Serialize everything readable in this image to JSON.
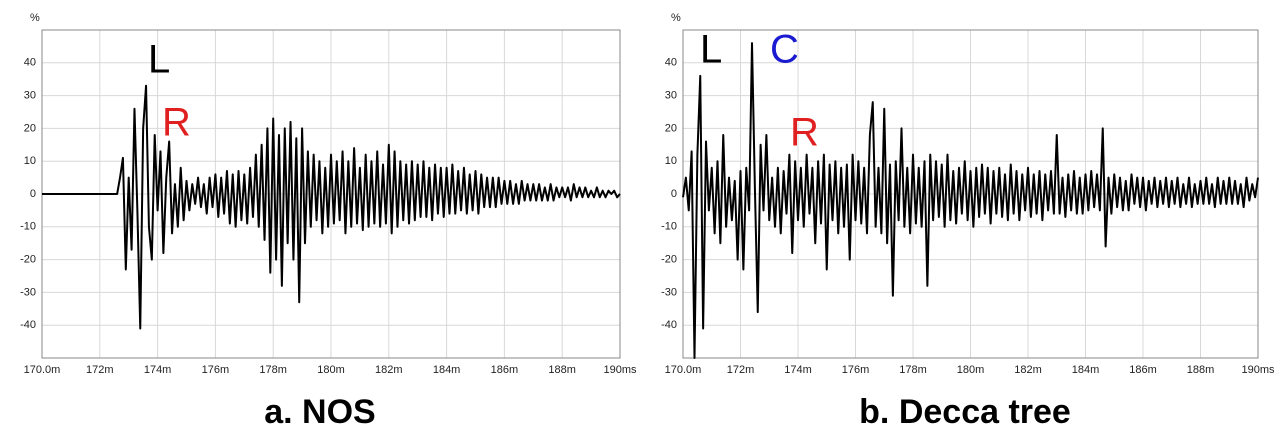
{
  "chart_data": [
    {
      "type": "line",
      "ylabel": "%",
      "subtitle": "a. NOS",
      "color": "#000000",
      "grid": true,
      "xlim": [
        170,
        190
      ],
      "ylim": [
        -50,
        50
      ],
      "xticks": [
        {
          "value": 170,
          "label": "170.0m"
        },
        {
          "value": 172,
          "label": "172m"
        },
        {
          "value": 174,
          "label": "174m"
        },
        {
          "value": 176,
          "label": "176m"
        },
        {
          "value": 178,
          "label": "178m"
        },
        {
          "value": 180,
          "label": "180m"
        },
        {
          "value": 182,
          "label": "182m"
        },
        {
          "value": 184,
          "label": "184m"
        },
        {
          "value": 186,
          "label": "186m"
        },
        {
          "value": 188,
          "label": "188m"
        },
        {
          "value": 190,
          "label": "190ms"
        }
      ],
      "yticks": [
        -40,
        -30,
        -20,
        -10,
        0,
        10,
        20,
        30,
        40
      ],
      "annotations": [
        {
          "text": "L",
          "color": "#000000"
        },
        {
          "text": "R",
          "color": "#e02020"
        }
      ],
      "x": [
        170.0,
        172.6,
        172.7,
        172.8,
        172.9,
        173.0,
        173.1,
        173.2,
        173.3,
        173.4,
        173.5,
        173.6,
        173.7,
        173.8,
        173.9,
        174.0,
        174.1,
        174.2,
        174.3,
        174.4,
        174.5,
        174.6,
        174.7,
        174.8,
        174.9,
        175.0,
        175.1,
        175.2,
        175.3,
        175.4,
        175.5,
        175.6,
        175.7,
        175.8,
        175.9,
        176.0,
        176.1,
        176.2,
        176.3,
        176.4,
        176.5,
        176.6,
        176.7,
        176.8,
        176.9,
        177.0,
        177.1,
        177.2,
        177.3,
        177.4,
        177.5,
        177.6,
        177.7,
        177.8,
        177.9,
        178.0,
        178.1,
        178.2,
        178.3,
        178.4,
        178.5,
        178.6,
        178.7,
        178.8,
        178.9,
        179.0,
        179.1,
        179.2,
        179.3,
        179.4,
        179.5,
        179.6,
        179.7,
        179.8,
        179.9,
        180.0,
        180.1,
        180.2,
        180.3,
        180.4,
        180.5,
        180.6,
        180.7,
        180.8,
        180.9,
        181.0,
        181.1,
        181.2,
        181.3,
        181.4,
        181.5,
        181.6,
        181.7,
        181.8,
        181.9,
        182.0,
        182.1,
        182.2,
        182.3,
        182.4,
        182.5,
        182.6,
        182.7,
        182.8,
        182.9,
        183.0,
        183.1,
        183.2,
        183.3,
        183.4,
        183.5,
        183.6,
        183.7,
        183.8,
        183.9,
        184.0,
        184.1,
        184.2,
        184.3,
        184.4,
        184.5,
        184.6,
        184.7,
        184.8,
        184.9,
        185.0,
        185.1,
        185.2,
        185.3,
        185.4,
        185.5,
        185.6,
        185.7,
        185.8,
        185.9,
        186.0,
        186.1,
        186.2,
        186.3,
        186.4,
        186.5,
        186.6,
        186.7,
        186.8,
        186.9,
        187.0,
        187.1,
        187.2,
        187.3,
        187.4,
        187.5,
        187.6,
        187.7,
        187.8,
        187.9,
        188.0,
        188.1,
        188.2,
        188.3,
        188.4,
        188.5,
        188.6,
        188.7,
        188.8,
        188.9,
        189.0,
        189.1,
        189.2,
        189.3,
        189.4,
        189.5,
        189.6,
        189.7,
        189.8,
        189.9,
        190.0
      ],
      "values": [
        0,
        0,
        5,
        11,
        -23,
        5,
        -17,
        26,
        -5,
        -41,
        20,
        33,
        -10,
        -20,
        18,
        -5,
        13,
        -18,
        5,
        16,
        -12,
        3,
        -10,
        8,
        -8,
        4,
        -5,
        3,
        -3,
        5,
        -4,
        3,
        -6,
        5,
        -4,
        6,
        -7,
        5,
        -6,
        7,
        -9,
        6,
        -10,
        7,
        -8,
        6,
        -9,
        8,
        -7,
        12,
        -10,
        15,
        -14,
        20,
        -24,
        23,
        -20,
        18,
        -28,
        20,
        -15,
        22,
        -20,
        17,
        -33,
        20,
        -15,
        13,
        -10,
        12,
        -8,
        10,
        -12,
        8,
        -10,
        12,
        -9,
        10,
        -8,
        13,
        -12,
        10,
        -10,
        14,
        -9,
        8,
        -11,
        12,
        -10,
        10,
        -9,
        13,
        -10,
        9,
        -9,
        15,
        -12,
        13,
        -10,
        10,
        -8,
        9,
        -9,
        10,
        -8,
        9,
        -7,
        10,
        -7,
        8,
        -8,
        9,
        -6,
        8,
        -7,
        8,
        -6,
        9,
        -6,
        7,
        -5,
        8,
        -6,
        6,
        -5,
        7,
        -6,
        6,
        -4,
        5,
        -4,
        5,
        -4,
        5,
        -3,
        4,
        -3,
        4,
        -3,
        3,
        -3,
        4,
        -2,
        3,
        -2,
        3,
        -2,
        3,
        -2,
        2,
        -2,
        3,
        -2,
        2,
        -1,
        2,
        -1,
        2,
        -2,
        3,
        -1,
        2,
        -1,
        2,
        -1,
        1,
        -1,
        2,
        -1,
        1,
        -1,
        1,
        0,
        1,
        -1,
        0
      ]
    },
    {
      "type": "line",
      "ylabel": "%",
      "subtitle": "b. Decca tree",
      "color": "#000000",
      "grid": true,
      "xlim": [
        170,
        190
      ],
      "ylim": [
        -50,
        50
      ],
      "xticks": [
        {
          "value": 170,
          "label": "170.0m"
        },
        {
          "value": 172,
          "label": "172m"
        },
        {
          "value": 174,
          "label": "174m"
        },
        {
          "value": 176,
          "label": "176m"
        },
        {
          "value": 178,
          "label": "178m"
        },
        {
          "value": 180,
          "label": "180m"
        },
        {
          "value": 182,
          "label": "182m"
        },
        {
          "value": 184,
          "label": "184m"
        },
        {
          "value": 186,
          "label": "186m"
        },
        {
          "value": 188,
          "label": "188m"
        },
        {
          "value": 190,
          "label": "190ms"
        }
      ],
      "yticks": [
        -40,
        -30,
        -20,
        -10,
        0,
        10,
        20,
        30,
        40
      ],
      "annotations": [
        {
          "text": "L",
          "color": "#000000"
        },
        {
          "text": "C",
          "color": "#1a1ad0"
        },
        {
          "text": "R",
          "color": "#e02020"
        }
      ],
      "x": [
        170.0,
        170.1,
        170.2,
        170.3,
        170.4,
        170.5,
        170.6,
        170.7,
        170.8,
        170.9,
        171.0,
        171.1,
        171.2,
        171.3,
        171.4,
        171.5,
        171.6,
        171.7,
        171.8,
        171.9,
        172.0,
        172.1,
        172.2,
        172.3,
        172.4,
        172.5,
        172.6,
        172.7,
        172.8,
        172.9,
        173.0,
        173.1,
        173.2,
        173.3,
        173.4,
        173.5,
        173.6,
        173.7,
        173.8,
        173.9,
        174.0,
        174.1,
        174.2,
        174.3,
        174.4,
        174.5,
        174.6,
        174.7,
        174.8,
        174.9,
        175.0,
        175.1,
        175.2,
        175.3,
        175.4,
        175.5,
        175.6,
        175.7,
        175.8,
        175.9,
        176.0,
        176.1,
        176.2,
        176.3,
        176.4,
        176.5,
        176.6,
        176.7,
        176.8,
        176.9,
        177.0,
        177.1,
        177.2,
        177.3,
        177.4,
        177.5,
        177.6,
        177.7,
        177.8,
        177.9,
        178.0,
        178.1,
        178.2,
        178.3,
        178.4,
        178.5,
        178.6,
        178.7,
        178.8,
        178.9,
        179.0,
        179.1,
        179.2,
        179.3,
        179.4,
        179.5,
        179.6,
        179.7,
        179.8,
        179.9,
        180.0,
        180.1,
        180.2,
        180.3,
        180.4,
        180.5,
        180.6,
        180.7,
        180.8,
        180.9,
        181.0,
        181.1,
        181.2,
        181.3,
        181.4,
        181.5,
        181.6,
        181.7,
        181.8,
        181.9,
        182.0,
        182.1,
        182.2,
        182.3,
        182.4,
        182.5,
        182.6,
        182.7,
        182.8,
        182.9,
        183.0,
        183.1,
        183.2,
        183.3,
        183.4,
        183.5,
        183.6,
        183.7,
        183.8,
        183.9,
        184.0,
        184.1,
        184.2,
        184.3,
        184.4,
        184.5,
        184.6,
        184.7,
        184.8,
        184.9,
        185.0,
        185.1,
        185.2,
        185.3,
        185.4,
        185.5,
        185.6,
        185.7,
        185.8,
        185.9,
        186.0,
        186.1,
        186.2,
        186.3,
        186.4,
        186.5,
        186.6,
        186.7,
        186.8,
        186.9,
        187.0,
        187.1,
        187.2,
        187.3,
        187.4,
        187.5,
        187.6,
        187.7,
        187.8,
        187.9,
        188.0,
        188.1,
        188.2,
        188.3,
        188.4,
        188.5,
        188.6,
        188.7,
        188.8,
        188.9,
        189.0,
        189.1,
        189.2,
        189.3,
        189.4,
        189.5,
        189.6,
        189.7,
        189.8,
        189.9,
        190.0
      ],
      "values": [
        -1,
        5,
        -5,
        13,
        -50,
        12,
        36,
        -41,
        16,
        -5,
        8,
        -12,
        10,
        -15,
        18,
        -10,
        5,
        -8,
        4,
        -20,
        7,
        -23,
        8,
        -5,
        46,
        2,
        -36,
        15,
        -5,
        18,
        -8,
        5,
        -10,
        8,
        -12,
        7,
        -6,
        12,
        -18,
        10,
        -8,
        8,
        -10,
        12,
        -6,
        8,
        -15,
        10,
        -9,
        12,
        -23,
        9,
        -8,
        10,
        -12,
        8,
        -10,
        9,
        -20,
        12,
        -8,
        10,
        -9,
        8,
        -12,
        18,
        28,
        -10,
        8,
        -12,
        26,
        -15,
        9,
        -31,
        10,
        -8,
        20,
        -10,
        8,
        -12,
        12,
        -9,
        8,
        -10,
        10,
        -28,
        12,
        -8,
        10,
        -7,
        9,
        -10,
        12,
        -8,
        7,
        -9,
        8,
        -6,
        10,
        -8,
        7,
        -10,
        8,
        -7,
        9,
        -6,
        8,
        -9,
        7,
        -6,
        8,
        -7,
        6,
        -8,
        9,
        -6,
        7,
        -8,
        6,
        -5,
        8,
        -7,
        6,
        -6,
        7,
        -8,
        6,
        -5,
        7,
        -6,
        18,
        -6,
        5,
        -7,
        6,
        -5,
        7,
        -6,
        5,
        -6,
        6,
        -5,
        7,
        -4,
        6,
        -5,
        20,
        -16,
        5,
        -6,
        6,
        -4,
        5,
        -5,
        4,
        -5,
        6,
        -3,
        5,
        -4,
        5,
        -5,
        4,
        -3,
        5,
        -4,
        4,
        -3,
        5,
        -4,
        4,
        -3,
        5,
        -4,
        3,
        -3,
        5,
        -4,
        3,
        -3,
        4,
        -3,
        5,
        -3,
        3,
        -4,
        5,
        -3,
        4,
        -3,
        5,
        -3,
        4,
        -3,
        3,
        -4,
        5,
        -2,
        3,
        -1,
        5
      ]
    }
  ]
}
